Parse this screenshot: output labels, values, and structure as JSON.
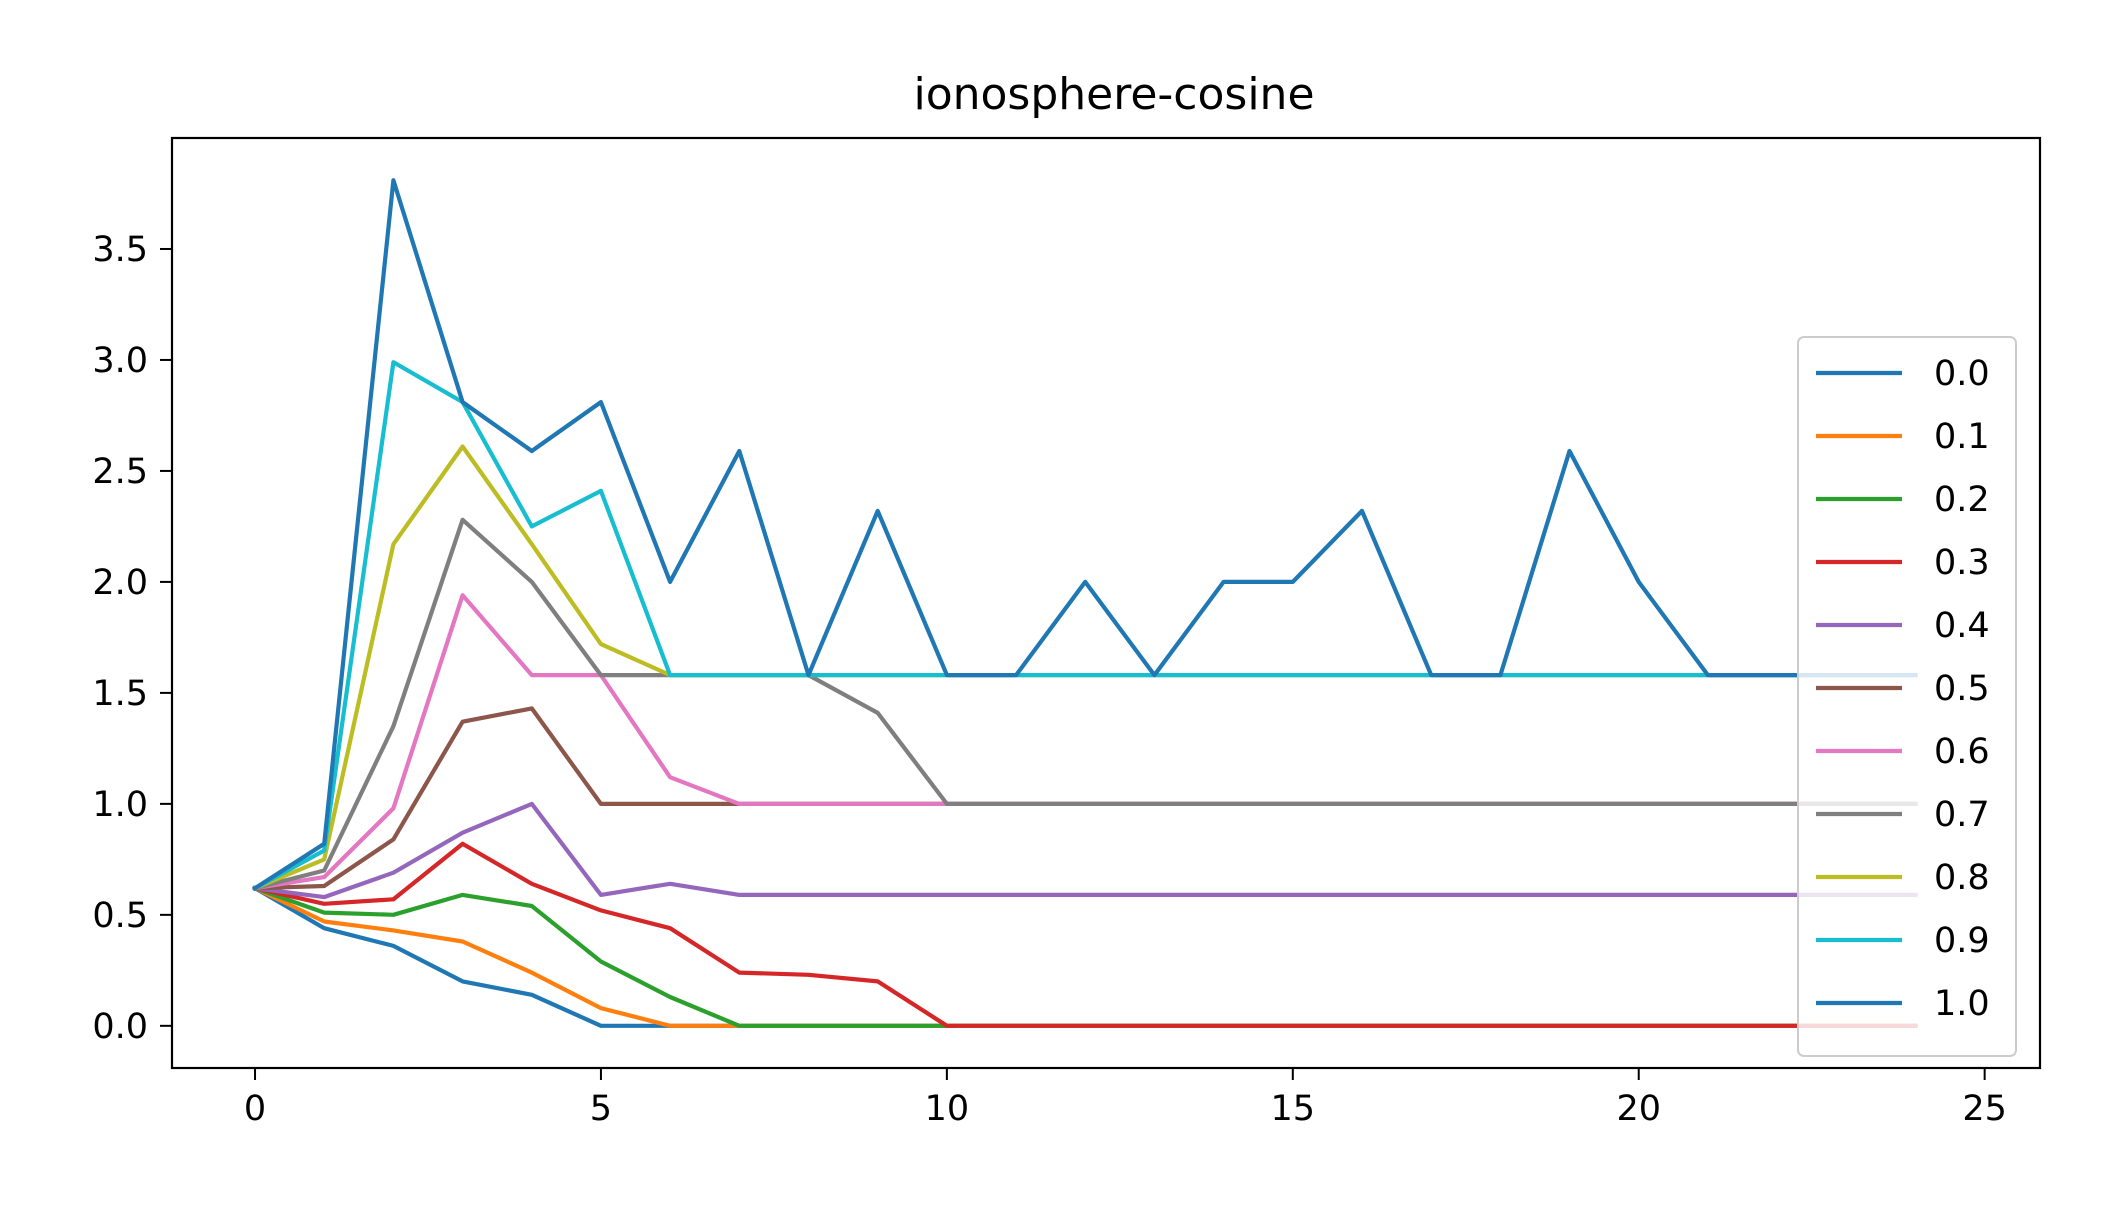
{
  "chart_data": {
    "type": "line",
    "title": "ionosphere-cosine",
    "xlabel": "",
    "ylabel": "",
    "xlim": [
      -1.2,
      25.8
    ],
    "ylim": [
      -0.19,
      4.0
    ],
    "xticks": [
      0,
      5,
      10,
      15,
      20,
      25
    ],
    "xtick_labels": [
      "0",
      "5",
      "10",
      "15",
      "20",
      "25"
    ],
    "yticks": [
      0.0,
      0.5,
      1.0,
      1.5,
      2.0,
      2.5,
      3.0,
      3.5
    ],
    "ytick_labels": [
      "0.0",
      "0.5",
      "1.0",
      "1.5",
      "2.0",
      "2.5",
      "3.0",
      "3.5"
    ],
    "grid": false,
    "legend_position": "center-right",
    "x": [
      0,
      1,
      2,
      3,
      4,
      5,
      6,
      7,
      8,
      9,
      10,
      11,
      12,
      13,
      14,
      15,
      16,
      17,
      18,
      19,
      20,
      21,
      22,
      23,
      24
    ],
    "series": [
      {
        "name": "0.0",
        "color": "#1f77b4",
        "values": [
          0.62,
          0.44,
          0.36,
          0.2,
          0.14,
          0,
          0,
          0,
          0,
          0,
          0,
          0,
          0,
          0,
          0,
          0,
          0,
          0,
          0,
          0,
          0,
          0,
          0,
          0,
          0
        ]
      },
      {
        "name": "0.1",
        "color": "#ff7f0e",
        "values": [
          0.62,
          0.47,
          0.43,
          0.38,
          0.24,
          0.08,
          0,
          0,
          0,
          0,
          0,
          0,
          0,
          0,
          0,
          0,
          0,
          0,
          0,
          0,
          0,
          0,
          0,
          0,
          0
        ]
      },
      {
        "name": "0.2",
        "color": "#2ca02c",
        "values": [
          0.62,
          0.51,
          0.5,
          0.59,
          0.54,
          0.29,
          0.13,
          0,
          0,
          0,
          0,
          0,
          0,
          0,
          0,
          0,
          0,
          0,
          0,
          0,
          0,
          0,
          0,
          0,
          0
        ]
      },
      {
        "name": "0.3",
        "color": "#d62728",
        "values": [
          0.62,
          0.55,
          0.57,
          0.82,
          0.64,
          0.52,
          0.44,
          0.24,
          0.23,
          0.2,
          0,
          0,
          0,
          0,
          0,
          0,
          0,
          0,
          0,
          0,
          0,
          0,
          0,
          0,
          0
        ]
      },
      {
        "name": "0.4",
        "color": "#9467bd",
        "values": [
          0.62,
          0.58,
          0.69,
          0.87,
          1.0,
          0.59,
          0.64,
          0.59,
          0.59,
          0.59,
          0.59,
          0.59,
          0.59,
          0.59,
          0.59,
          0.59,
          0.59,
          0.59,
          0.59,
          0.59,
          0.59,
          0.59,
          0.59,
          0.59,
          0.59
        ]
      },
      {
        "name": "0.5",
        "color": "#8c564b",
        "values": [
          0.62,
          0.63,
          0.84,
          1.37,
          1.43,
          1.0,
          1.0,
          1.0,
          1.0,
          1.0,
          1.0,
          1.0,
          1.0,
          1.0,
          1.0,
          1.0,
          1.0,
          1.0,
          1.0,
          1.0,
          1.0,
          1.0,
          1.0,
          1.0,
          1.0
        ]
      },
      {
        "name": "0.6",
        "color": "#e377c2",
        "values": [
          0.62,
          0.67,
          0.98,
          1.94,
          1.58,
          1.58,
          1.12,
          1.0,
          1.0,
          1.0,
          1.0,
          1.0,
          1.0,
          1.0,
          1.0,
          1.0,
          1.0,
          1.0,
          1.0,
          1.0,
          1.0,
          1.0,
          1.0,
          1.0,
          1.0
        ]
      },
      {
        "name": "0.7",
        "color": "#7f7f7f",
        "values": [
          0.62,
          0.7,
          1.35,
          2.28,
          2.0,
          1.58,
          1.58,
          1.58,
          1.58,
          1.41,
          1.0,
          1.0,
          1.0,
          1.0,
          1.0,
          1.0,
          1.0,
          1.0,
          1.0,
          1.0,
          1.0,
          1.0,
          1.0,
          1.0,
          1.0
        ]
      },
      {
        "name": "0.8",
        "color": "#bcbd22",
        "values": [
          0.62,
          0.75,
          2.17,
          2.61,
          2.17,
          1.72,
          1.58,
          1.58,
          1.58,
          1.58,
          1.58,
          1.58,
          1.58,
          1.58,
          1.58,
          1.58,
          1.58,
          1.58,
          1.58,
          1.58,
          1.58,
          1.58,
          1.58,
          1.58,
          1.58
        ]
      },
      {
        "name": "0.9",
        "color": "#17becf",
        "values": [
          0.62,
          0.79,
          2.99,
          2.81,
          2.25,
          2.41,
          1.58,
          1.58,
          1.58,
          1.58,
          1.58,
          1.58,
          1.58,
          1.58,
          1.58,
          1.58,
          1.58,
          1.58,
          1.58,
          1.58,
          1.58,
          1.58,
          1.58,
          1.58,
          1.58
        ]
      },
      {
        "name": "1.0",
        "color": "#1f77b4",
        "values": [
          0.62,
          0.82,
          3.81,
          2.81,
          2.59,
          2.81,
          2.0,
          2.59,
          1.58,
          2.32,
          1.58,
          1.58,
          2.0,
          1.58,
          2.0,
          2.0,
          2.32,
          1.58,
          1.58,
          2.59,
          2.0,
          1.58,
          1.58,
          1.58,
          1.58
        ]
      }
    ]
  }
}
